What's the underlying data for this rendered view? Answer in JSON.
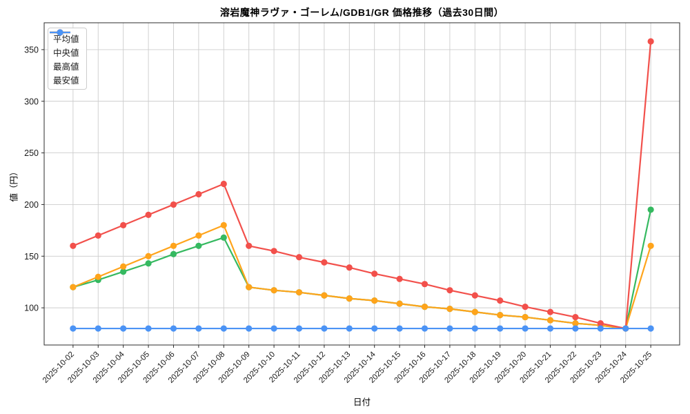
{
  "figure": {
    "background": "#ffffff",
    "grid_color": "#cccccc",
    "spine_color": "#2b2b2b",
    "tick_label_color": "#1a1a1a"
  },
  "chart_data": {
    "type": "line",
    "title": "溶岩魔神ラヴァ・ゴーレム/GDB1/GR 価格推移（過去30日間）",
    "xlabel": "日付",
    "ylabel": "値（円）",
    "categories": [
      "2025-10-02",
      "2025-10-03",
      "2025-10-04",
      "2025-10-05",
      "2025-10-06",
      "2025-10-07",
      "2025-10-08",
      "2025-10-09",
      "2025-10-10",
      "2025-10-11",
      "2025-10-12",
      "2025-10-13",
      "2025-10-14",
      "2025-10-15",
      "2025-10-16",
      "2025-10-17",
      "2025-10-18",
      "2025-10-19",
      "2025-10-20",
      "2025-10-21",
      "2025-10-22",
      "2025-10-23",
      "2025-10-24",
      "2025-10-25"
    ],
    "series": [
      {
        "name": "平均値",
        "color": "#35b960",
        "marker": "circle",
        "values": [
          120,
          127,
          135,
          143,
          152,
          160,
          168,
          120,
          117,
          115,
          112,
          109,
          107,
          104,
          101,
          99,
          96,
          93,
          91,
          88,
          85,
          83,
          80,
          195
        ]
      },
      {
        "name": "中央値",
        "color": "#ffa41b",
        "marker": "circle",
        "values": [
          120,
          130,
          140,
          150,
          160,
          170,
          180,
          120,
          117,
          115,
          112,
          109,
          107,
          104,
          101,
          99,
          96,
          93,
          91,
          88,
          85,
          83,
          80,
          160
        ]
      },
      {
        "name": "最高値",
        "color": "#f2504b",
        "marker": "circle",
        "values": [
          160,
          170,
          180,
          190,
          200,
          210,
          220,
          160,
          155,
          149,
          144,
          139,
          133,
          128,
          123,
          117,
          112,
          107,
          101,
          96,
          91,
          85,
          80,
          358
        ]
      },
      {
        "name": "最安値",
        "color": "#4b93f5",
        "marker": "circle",
        "values": [
          80,
          80,
          80,
          80,
          80,
          80,
          80,
          80,
          80,
          80,
          80,
          80,
          80,
          80,
          80,
          80,
          80,
          80,
          80,
          80,
          80,
          80,
          80,
          80
        ]
      }
    ],
    "yticks": [
      100,
      150,
      200,
      250,
      300,
      350
    ],
    "ylim": [
      64,
      376
    ],
    "xlim": [
      -1.15,
      24.15
    ],
    "grid": true,
    "legend_position": "upper left",
    "x_tick_rotation": -45
  }
}
